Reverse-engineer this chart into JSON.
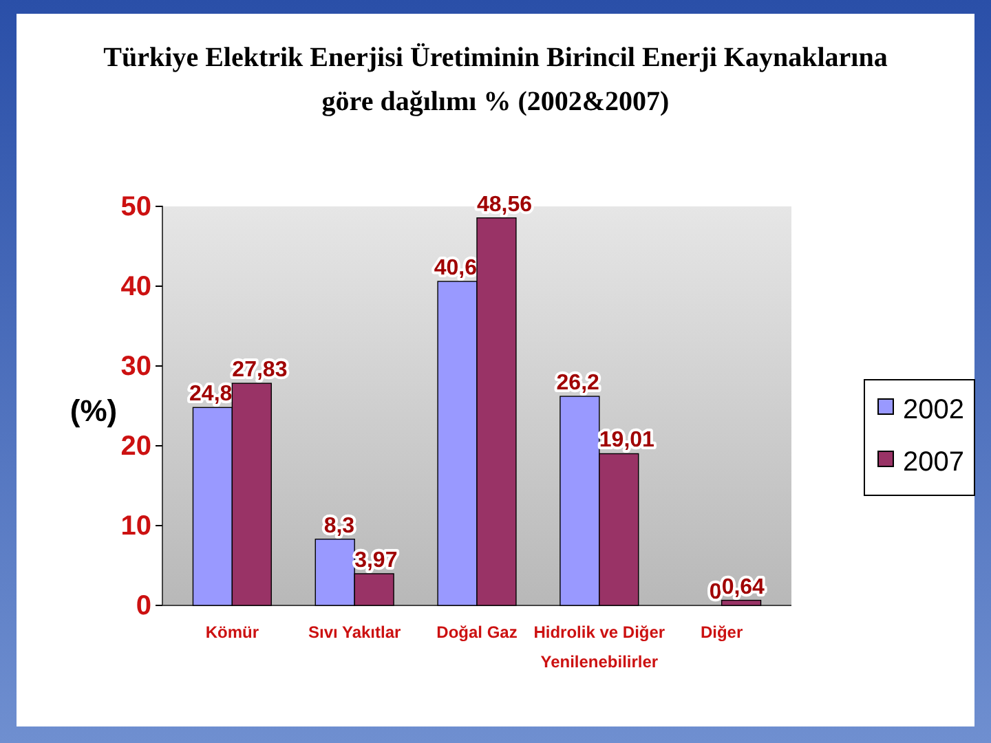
{
  "chart_data": {
    "type": "bar",
    "title": "Türkiye Elektrik Enerjisi Üretiminin Birincil Enerji Kaynaklarına\ngöre dağılımı  % (2002&2007)",
    "ylabel": "(%)",
    "categories": [
      "Kömür",
      "Sıvı Yakıtlar",
      "Doğal Gaz",
      "Hidrolik ve Diğer Yenilenebilirler",
      "Diğer"
    ],
    "series": [
      {
        "name": "2002",
        "color": "#9999ff",
        "values": [
          24.8,
          8.3,
          40.6,
          26.2,
          0
        ],
        "value_labels": [
          "24,8",
          "8,3",
          "40,6",
          "26,2",
          "0"
        ]
      },
      {
        "name": "2007",
        "color": "#993366",
        "values": [
          27.83,
          3.97,
          48.56,
          19.01,
          0.64
        ],
        "value_labels": [
          "27,83",
          "3,97",
          "48,56",
          "19,01",
          "0,64"
        ]
      }
    ],
    "ylim": [
      0,
      50
    ],
    "yticks": [
      0,
      10,
      20,
      30,
      40,
      50
    ],
    "grid": false,
    "legend": "right"
  }
}
